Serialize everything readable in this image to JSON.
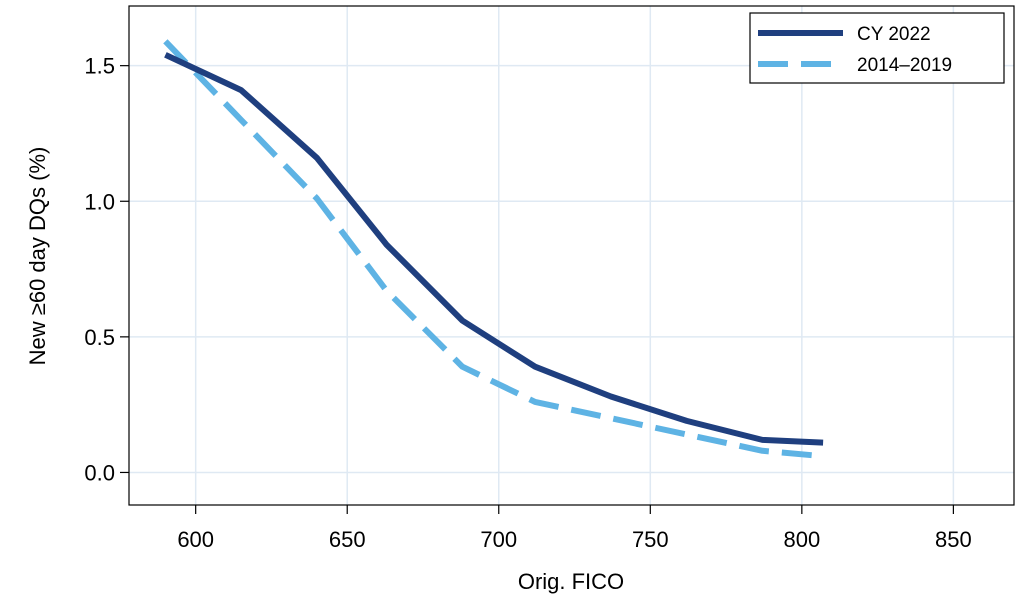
{
  "chart_data": {
    "type": "line",
    "title": "",
    "xlabel": "Orig. FICO",
    "ylabel": "New ≥60 day DQs (%)",
    "xlim": [
      578,
      870
    ],
    "ylim": [
      -0.12,
      1.72
    ],
    "xticks": [
      600,
      650,
      700,
      750,
      800,
      850
    ],
    "xtick_labels": [
      "600",
      "650",
      "700",
      "750",
      "800",
      "850"
    ],
    "yticks": [
      0.0,
      0.5,
      1.0,
      1.5
    ],
    "ytick_labels": [
      "0.0",
      "0.5",
      "1.0",
      "1.5"
    ],
    "grid": true,
    "legend_position": "top-right",
    "series": [
      {
        "name": "CY 2022",
        "style": "solid",
        "color": "#1f3f7f",
        "x": [
          590,
          615,
          640,
          663,
          688,
          712,
          737,
          762,
          787,
          807
        ],
        "y": [
          1.54,
          1.41,
          1.16,
          0.84,
          0.56,
          0.39,
          0.28,
          0.19,
          0.12,
          0.11
        ]
      },
      {
        "name": "2014–2019",
        "style": "dashed",
        "color": "#5eb3e4",
        "x": [
          590,
          615,
          640,
          663,
          688,
          712,
          737,
          762,
          787,
          807
        ],
        "y": [
          1.59,
          1.3,
          1.01,
          0.67,
          0.39,
          0.26,
          0.2,
          0.14,
          0.08,
          0.06
        ]
      }
    ]
  }
}
